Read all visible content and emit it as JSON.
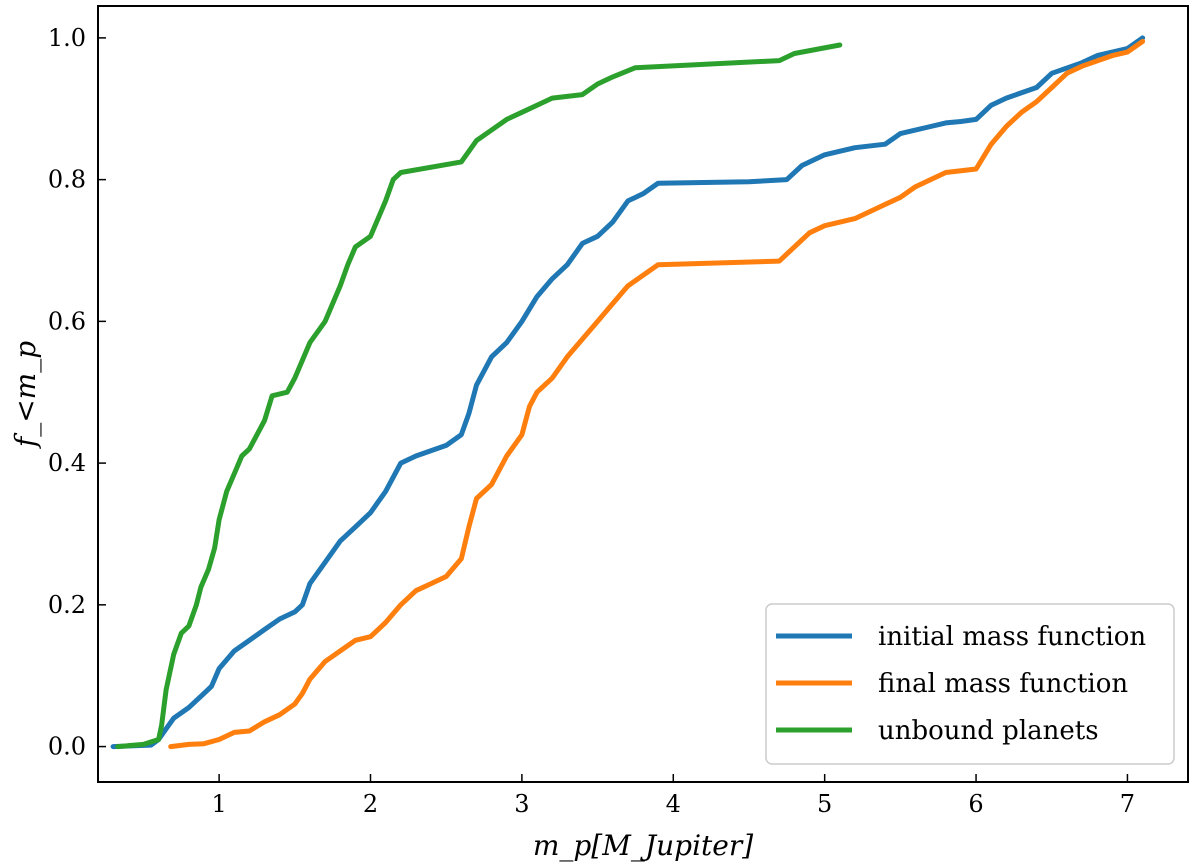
{
  "chart_data": {
    "type": "line",
    "xlabel": "m_p[M_Jupiter]",
    "ylabel": "f_<m_p",
    "xlim": [
      0.2,
      7.4
    ],
    "ylim": [
      -0.05,
      1.045
    ],
    "x_ticks": [
      "1",
      "2",
      "3",
      "4",
      "5",
      "6",
      "7"
    ],
    "y_ticks": [
      "0.0",
      "0.2",
      "0.4",
      "0.6",
      "0.8",
      "1.0"
    ],
    "legend_position": "lower-right",
    "series": [
      {
        "name": "initial mass function",
        "color": "#1f77b4",
        "points": [
          [
            0.3,
            0.0
          ],
          [
            0.55,
            0.002
          ],
          [
            0.6,
            0.01
          ],
          [
            0.65,
            0.025
          ],
          [
            0.7,
            0.04
          ],
          [
            0.8,
            0.055
          ],
          [
            0.9,
            0.075
          ],
          [
            0.95,
            0.085
          ],
          [
            1.0,
            0.11
          ],
          [
            1.1,
            0.135
          ],
          [
            1.2,
            0.15
          ],
          [
            1.3,
            0.165
          ],
          [
            1.4,
            0.18
          ],
          [
            1.5,
            0.19
          ],
          [
            1.55,
            0.2
          ],
          [
            1.6,
            0.23
          ],
          [
            1.7,
            0.26
          ],
          [
            1.8,
            0.29
          ],
          [
            1.9,
            0.31
          ],
          [
            2.0,
            0.33
          ],
          [
            2.1,
            0.36
          ],
          [
            2.2,
            0.4
          ],
          [
            2.3,
            0.41
          ],
          [
            2.5,
            0.425
          ],
          [
            2.6,
            0.44
          ],
          [
            2.65,
            0.47
          ],
          [
            2.7,
            0.51
          ],
          [
            2.8,
            0.55
          ],
          [
            2.9,
            0.57
          ],
          [
            3.0,
            0.6
          ],
          [
            3.1,
            0.635
          ],
          [
            3.2,
            0.66
          ],
          [
            3.3,
            0.68
          ],
          [
            3.4,
            0.71
          ],
          [
            3.5,
            0.72
          ],
          [
            3.6,
            0.74
          ],
          [
            3.7,
            0.77
          ],
          [
            3.8,
            0.78
          ],
          [
            3.9,
            0.795
          ],
          [
            4.5,
            0.797
          ],
          [
            4.75,
            0.8
          ],
          [
            4.85,
            0.82
          ],
          [
            5.0,
            0.835
          ],
          [
            5.2,
            0.845
          ],
          [
            5.4,
            0.85
          ],
          [
            5.5,
            0.865
          ],
          [
            5.7,
            0.875
          ],
          [
            5.8,
            0.88
          ],
          [
            5.9,
            0.882
          ],
          [
            6.0,
            0.885
          ],
          [
            6.1,
            0.905
          ],
          [
            6.2,
            0.915
          ],
          [
            6.4,
            0.93
          ],
          [
            6.5,
            0.95
          ],
          [
            6.7,
            0.965
          ],
          [
            6.8,
            0.975
          ],
          [
            7.0,
            0.985
          ],
          [
            7.1,
            1.0
          ]
        ]
      },
      {
        "name": "final mass function",
        "color": "#ff7f0e",
        "points": [
          [
            0.68,
            0.0
          ],
          [
            0.8,
            0.003
          ],
          [
            0.9,
            0.004
          ],
          [
            1.0,
            0.01
          ],
          [
            1.1,
            0.02
          ],
          [
            1.2,
            0.022
          ],
          [
            1.3,
            0.035
          ],
          [
            1.4,
            0.045
          ],
          [
            1.5,
            0.06
          ],
          [
            1.55,
            0.075
          ],
          [
            1.6,
            0.095
          ],
          [
            1.7,
            0.12
          ],
          [
            1.8,
            0.135
          ],
          [
            1.9,
            0.15
          ],
          [
            2.0,
            0.155
          ],
          [
            2.1,
            0.175
          ],
          [
            2.2,
            0.2
          ],
          [
            2.3,
            0.22
          ],
          [
            2.4,
            0.23
          ],
          [
            2.5,
            0.24
          ],
          [
            2.6,
            0.265
          ],
          [
            2.65,
            0.31
          ],
          [
            2.7,
            0.35
          ],
          [
            2.8,
            0.37
          ],
          [
            2.9,
            0.41
          ],
          [
            3.0,
            0.44
          ],
          [
            3.05,
            0.48
          ],
          [
            3.1,
            0.5
          ],
          [
            3.2,
            0.52
          ],
          [
            3.3,
            0.55
          ],
          [
            3.4,
            0.575
          ],
          [
            3.5,
            0.6
          ],
          [
            3.6,
            0.625
          ],
          [
            3.7,
            0.65
          ],
          [
            3.8,
            0.665
          ],
          [
            3.9,
            0.68
          ],
          [
            4.7,
            0.685
          ],
          [
            4.8,
            0.705
          ],
          [
            4.9,
            0.725
          ],
          [
            5.0,
            0.735
          ],
          [
            5.2,
            0.745
          ],
          [
            5.4,
            0.765
          ],
          [
            5.5,
            0.775
          ],
          [
            5.6,
            0.79
          ],
          [
            5.7,
            0.8
          ],
          [
            5.8,
            0.81
          ],
          [
            6.0,
            0.815
          ],
          [
            6.1,
            0.85
          ],
          [
            6.2,
            0.875
          ],
          [
            6.3,
            0.895
          ],
          [
            6.4,
            0.91
          ],
          [
            6.5,
            0.93
          ],
          [
            6.6,
            0.95
          ],
          [
            6.7,
            0.96
          ],
          [
            6.9,
            0.975
          ],
          [
            7.0,
            0.98
          ],
          [
            7.1,
            0.995
          ]
        ]
      },
      {
        "name": "unbound planets",
        "color": "#2ca02c",
        "points": [
          [
            0.33,
            0.0
          ],
          [
            0.5,
            0.003
          ],
          [
            0.6,
            0.01
          ],
          [
            0.62,
            0.03
          ],
          [
            0.65,
            0.08
          ],
          [
            0.7,
            0.13
          ],
          [
            0.75,
            0.16
          ],
          [
            0.8,
            0.17
          ],
          [
            0.85,
            0.2
          ],
          [
            0.88,
            0.225
          ],
          [
            0.93,
            0.25
          ],
          [
            0.97,
            0.28
          ],
          [
            1.0,
            0.32
          ],
          [
            1.05,
            0.36
          ],
          [
            1.1,
            0.385
          ],
          [
            1.15,
            0.41
          ],
          [
            1.2,
            0.42
          ],
          [
            1.3,
            0.46
          ],
          [
            1.35,
            0.495
          ],
          [
            1.45,
            0.5
          ],
          [
            1.5,
            0.52
          ],
          [
            1.6,
            0.57
          ],
          [
            1.7,
            0.6
          ],
          [
            1.8,
            0.65
          ],
          [
            1.85,
            0.68
          ],
          [
            1.9,
            0.705
          ],
          [
            2.0,
            0.72
          ],
          [
            2.1,
            0.77
          ],
          [
            2.15,
            0.8
          ],
          [
            2.2,
            0.81
          ],
          [
            2.6,
            0.825
          ],
          [
            2.7,
            0.855
          ],
          [
            2.8,
            0.87
          ],
          [
            2.9,
            0.885
          ],
          [
            3.0,
            0.895
          ],
          [
            3.1,
            0.905
          ],
          [
            3.2,
            0.915
          ],
          [
            3.4,
            0.92
          ],
          [
            3.5,
            0.935
          ],
          [
            3.6,
            0.945
          ],
          [
            3.75,
            0.958
          ],
          [
            4.7,
            0.968
          ],
          [
            4.8,
            0.978
          ],
          [
            5.1,
            0.99
          ]
        ]
      }
    ]
  }
}
